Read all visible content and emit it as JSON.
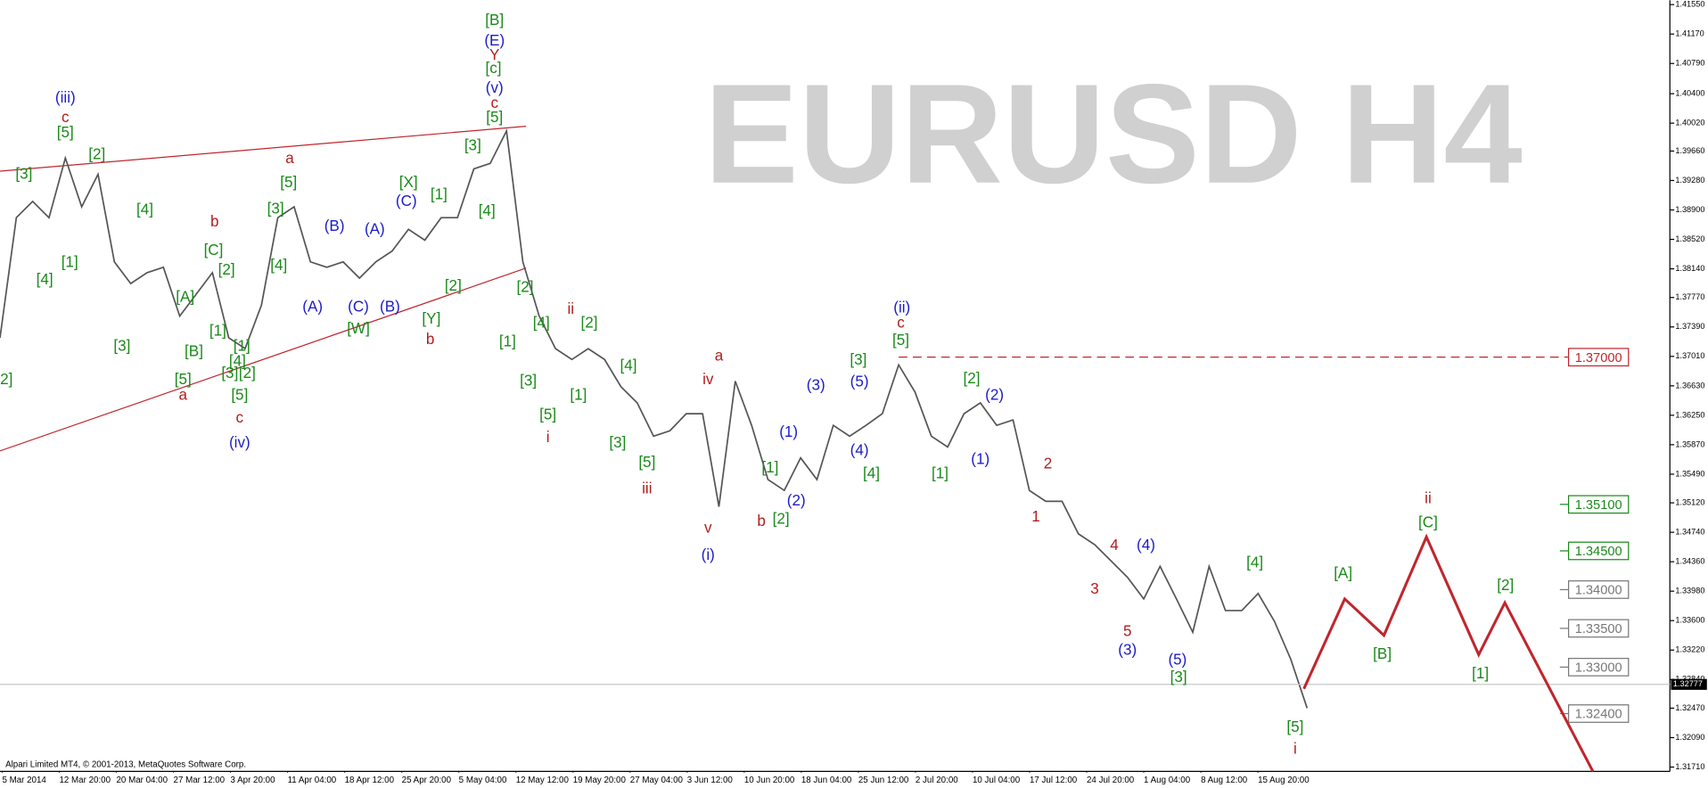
{
  "chart_data": {
    "type": "line",
    "watermark": "EURUSD H4",
    "footer": "Alpari Limited MT4, © 2001-2013, MetaQuotes Software Corp.",
    "ylim": [
      1.3171,
      1.4155
    ],
    "yticks": [
      {
        "value": 1.4155,
        "label": "1.41550"
      },
      {
        "value": 1.4117,
        "label": "1.41170"
      },
      {
        "value": 1.4079,
        "label": "1.40790"
      },
      {
        "value": 1.404,
        "label": "1.40400"
      },
      {
        "value": 1.4002,
        "label": "1.40020"
      },
      {
        "value": 1.3966,
        "label": "1.39660"
      },
      {
        "value": 1.3928,
        "label": "1.39280"
      },
      {
        "value": 1.389,
        "label": "1.38900"
      },
      {
        "value": 1.3852,
        "label": "1.38520"
      },
      {
        "value": 1.3814,
        "label": "1.38140"
      },
      {
        "value": 1.3777,
        "label": "1.37770"
      },
      {
        "value": 1.3739,
        "label": "1.37390"
      },
      {
        "value": 1.3701,
        "label": "1.37010"
      },
      {
        "value": 1.3663,
        "label": "1.36630"
      },
      {
        "value": 1.3625,
        "label": "1.36250"
      },
      {
        "value": 1.3587,
        "label": "1.35870"
      },
      {
        "value": 1.3549,
        "label": "1.35490"
      },
      {
        "value": 1.3512,
        "label": "1.35120"
      },
      {
        "value": 1.3474,
        "label": "1.34740"
      },
      {
        "value": 1.3436,
        "label": "1.34360"
      },
      {
        "value": 1.3398,
        "label": "1.33980"
      },
      {
        "value": 1.336,
        "label": "1.33600"
      },
      {
        "value": 1.3322,
        "label": "1.33220"
      },
      {
        "value": 1.3284,
        "label": "1.32840"
      },
      {
        "value": 1.3247,
        "label": "1.32470"
      },
      {
        "value": 1.3209,
        "label": "1.32090"
      },
      {
        "value": 1.3171,
        "label": "1.31710"
      }
    ],
    "x_labels": [
      "5 Mar 2014",
      "12 Mar 20:00",
      "20 Mar 04:00",
      "27 Mar 12:00",
      "3 Apr 20:00",
      "11 Apr 04:00",
      "18 Apr 12:00",
      "25 Apr 20:00",
      "5 May 04:00",
      "12 May 12:00",
      "19 May 20:00",
      "27 May 04:00",
      "3 Jun 12:00",
      "10 Jun 20:00",
      "18 Jun 04:00",
      "25 Jun 12:00",
      "2 Jul 20:00",
      "10 Jul 04:00",
      "17 Jul 12:00",
      "24 Jul 20:00",
      "1 Aug 04:00",
      "8 Aug 12:00",
      "15 Aug 20:00"
    ],
    "series": [
      {
        "name": "EURUSD",
        "color": "#555555",
        "values": [
          1.3725,
          1.388,
          1.3901,
          1.388,
          1.3957,
          1.3894,
          1.3936,
          1.3823,
          1.3795,
          1.3809,
          1.3816,
          1.3753,
          1.3781,
          1.3809,
          1.3725,
          1.3711,
          1.3767,
          1.388,
          1.3894,
          1.3823,
          1.3816,
          1.3823,
          1.3802,
          1.3823,
          1.3837,
          1.3865,
          1.3851,
          1.388,
          1.388,
          1.3943,
          1.395,
          1.3992,
          1.3823,
          1.3753,
          1.3711,
          1.3697,
          1.3711,
          1.3697,
          1.3662,
          1.3641,
          1.3598,
          1.3605,
          1.3627,
          1.3627,
          1.3507,
          1.3669,
          1.3612,
          1.3542,
          1.3528,
          1.357,
          1.3542,
          1.3612,
          1.3598,
          1.3612,
          1.3627,
          1.369,
          1.3655,
          1.3598,
          1.3584,
          1.3627,
          1.3641,
          1.3612,
          1.3619,
          1.3528,
          1.3514,
          1.3514,
          1.3472,
          1.3458,
          1.3437,
          1.3416,
          1.3388,
          1.343,
          1.3388,
          1.3345,
          1.343,
          1.3373,
          1.3373,
          1.3395,
          1.3359,
          1.331,
          1.3247
        ]
      }
    ],
    "current_price": {
      "value": 1.32777,
      "label": "1.32777"
    },
    "projection": {
      "color": "#c0262d",
      "x": [
        79.8,
        82.3,
        84.7,
        87.3,
        90.5,
        92.1,
        97.5
      ],
      "values": [
        1.3272,
        1.3388,
        1.3341,
        1.3468,
        1.3316,
        1.3383,
        1.3165
      ]
    },
    "trendlines": [
      {
        "color": "#c0262d",
        "x": [
          0,
          32.2
        ],
        "values": [
          1.394,
          1.3998
        ]
      },
      {
        "color": "#c0262d",
        "x": [
          0,
          32.2
        ],
        "values": [
          1.3579,
          1.3815
        ]
      }
    ],
    "levels": [
      {
        "value": 1.37,
        "label": "1.37000",
        "color": "#c0262d",
        "dashed": true
      },
      {
        "value": 1.351,
        "label": "1.35100",
        "color": "#1a8a1a"
      },
      {
        "value": 1.345,
        "label": "1.34500",
        "color": "#1a8a1a"
      },
      {
        "value": 1.34,
        "label": "1.34000",
        "color": "#777777"
      },
      {
        "value": 1.335,
        "label": "1.33500",
        "color": "#777777"
      },
      {
        "value": 1.33,
        "label": "1.33000",
        "color": "#777777"
      },
      {
        "value": 1.324,
        "label": "1.32400",
        "color": "#777777"
      }
    ],
    "wave_labels": [
      {
        "color": "#1a8a1a",
        "texts": [
          "[2]",
          "[3]",
          "[5]",
          "[2]",
          "[1]",
          "[4]",
          "[4]",
          "[3]",
          "[A]",
          "[B]",
          "[C]",
          "[2]",
          "[1]",
          "[3]",
          "[1]",
          "[4]",
          "[2]",
          "[5]",
          "[5]",
          "[5]",
          "[3]",
          "[4]",
          "[X]",
          "[1]",
          "[W]",
          "[Y]",
          "[2]",
          "[3]",
          "[5]",
          "[4]",
          "[c]",
          "[B]",
          "[2]",
          "[4]",
          "[1]",
          "[3]",
          "[5]",
          "[1]",
          "[2]",
          "[4]",
          "[3]",
          "[5]",
          "[1]",
          "[2]",
          "[3]",
          "[5]",
          "[4]",
          "[2]",
          "[1]",
          "[4]",
          "[3]",
          "[5]",
          "[A]",
          "[B]",
          "[C]",
          "[2]",
          "[1]"
        ]
      },
      {
        "color": "#1c1cc8",
        "texts": [
          "(iii)",
          "(iv)",
          "(v)",
          "(E)",
          "(B)",
          "(A)",
          "(C)",
          "(A)",
          "(C)",
          "(B)",
          "(i)",
          "(ii)",
          "(3)",
          "(5)",
          "(1)",
          "(4)",
          "(2)",
          "(2)",
          "(1)",
          "(4)",
          "(3)",
          "(5)"
        ]
      },
      {
        "color": "#b01e1e",
        "texts": [
          "c",
          "Y",
          "c",
          "a",
          "b",
          "a",
          "c",
          "b",
          "ii",
          "i",
          "iii",
          "a",
          "iv",
          "v",
          "b",
          "c",
          "2",
          "1",
          "4",
          "3",
          "5",
          "ii",
          "i"
        ]
      }
    ]
  }
}
